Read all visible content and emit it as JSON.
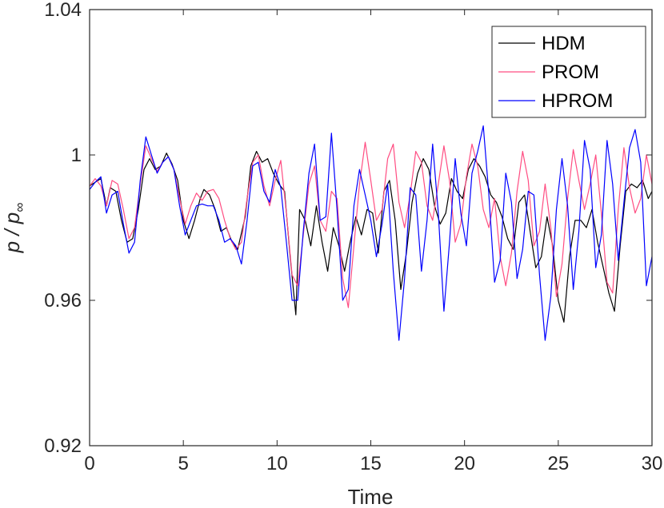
{
  "chart_data": {
    "type": "line",
    "xlabel": "Time",
    "ylabel_main": "p / p",
    "ylabel_sub": "∞",
    "xlim": [
      0,
      30
    ],
    "ylim": [
      0.92,
      1.04
    ],
    "xticks": [
      0,
      5,
      10,
      15,
      20,
      25,
      30
    ],
    "xtick_labels": [
      "0",
      "5",
      "10",
      "15",
      "20",
      "25",
      "30"
    ],
    "yticks": [
      0.92,
      0.96,
      1.0,
      1.04
    ],
    "ytick_labels": [
      "0.92",
      "0.96",
      "1",
      "1.04"
    ],
    "grid": false,
    "legend_position": "top-right",
    "series": [
      {
        "name": "HDM",
        "color": "#000000",
        "points": [
          [
            0,
            0.9915
          ],
          [
            0.3,
            0.9925
          ],
          [
            0.6,
            0.9935
          ],
          [
            0.9,
            0.986
          ],
          [
            1.1,
            0.991
          ],
          [
            1.4,
            0.99
          ],
          [
            1.7,
            0.982
          ],
          [
            2.0,
            0.976
          ],
          [
            2.3,
            0.977
          ],
          [
            2.6,
            0.985
          ],
          [
            2.9,
            0.996
          ],
          [
            3.2,
            0.999
          ],
          [
            3.5,
            0.996
          ],
          [
            3.8,
            0.997
          ],
          [
            4.1,
            1.0005
          ],
          [
            4.4,
            0.9975
          ],
          [
            4.7,
            0.993
          ],
          [
            5.0,
            0.982
          ],
          [
            5.3,
            0.977
          ],
          [
            5.6,
            0.982
          ],
          [
            5.9,
            0.988
          ],
          [
            6.1,
            0.9905
          ],
          [
            6.4,
            0.989
          ],
          [
            6.7,
            0.985
          ],
          [
            7.0,
            0.979
          ],
          [
            7.3,
            0.98
          ],
          [
            7.6,
            0.976
          ],
          [
            7.9,
            0.974
          ],
          [
            8.3,
            0.983
          ],
          [
            8.6,
            0.997
          ],
          [
            8.9,
            1.001
          ],
          [
            9.2,
            0.998
          ],
          [
            9.5,
            0.999
          ],
          [
            9.8,
            0.995
          ],
          [
            10.1,
            0.992
          ],
          [
            10.4,
            0.99
          ],
          [
            10.7,
            0.972
          ],
          [
            11.0,
            0.956
          ],
          [
            11.2,
            0.985
          ],
          [
            11.5,
            0.982
          ],
          [
            11.8,
            0.975
          ],
          [
            12.1,
            0.986
          ],
          [
            12.4,
            0.976
          ],
          [
            12.7,
            0.968
          ],
          [
            13.0,
            0.98
          ],
          [
            13.3,
            0.975
          ],
          [
            13.6,
            0.968
          ],
          [
            13.9,
            0.976
          ],
          [
            14.2,
            0.983
          ],
          [
            14.5,
            0.978
          ],
          [
            14.8,
            0.985
          ],
          [
            15.1,
            0.984
          ],
          [
            15.4,
            0.973
          ],
          [
            15.7,
            0.99
          ],
          [
            16.0,
            0.993
          ],
          [
            16.3,
            0.982
          ],
          [
            16.6,
            0.963
          ],
          [
            16.9,
            0.973
          ],
          [
            17.2,
            0.987
          ],
          [
            17.5,
            0.995
          ],
          [
            17.8,
            0.999
          ],
          [
            18.1,
            0.996
          ],
          [
            18.4,
            0.986
          ],
          [
            18.7,
            0.981
          ],
          [
            19.0,
            0.984
          ],
          [
            19.3,
            0.9935
          ],
          [
            19.6,
            0.99
          ],
          [
            19.9,
            0.988
          ],
          [
            20.2,
            0.996
          ],
          [
            20.5,
            0.999
          ],
          [
            20.8,
            0.997
          ],
          [
            21.1,
            0.994
          ],
          [
            21.4,
            0.989
          ],
          [
            21.7,
            0.987
          ],
          [
            22.0,
            0.983
          ],
          [
            22.3,
            0.977
          ],
          [
            22.6,
            0.974
          ],
          [
            22.9,
            0.987
          ],
          [
            23.2,
            0.989
          ],
          [
            23.5,
            0.979
          ],
          [
            23.8,
            0.969
          ],
          [
            24.1,
            0.972
          ],
          [
            24.4,
            0.983
          ],
          [
            24.7,
            0.975
          ],
          [
            25.0,
            0.96
          ],
          [
            25.3,
            0.954
          ],
          [
            25.6,
            0.972
          ],
          [
            25.9,
            0.982
          ],
          [
            26.2,
            0.982
          ],
          [
            26.5,
            0.98
          ],
          [
            26.8,
            0.985
          ],
          [
            27.1,
            0.976
          ],
          [
            27.4,
            0.969
          ],
          [
            27.7,
            0.962
          ],
          [
            28.0,
            0.957
          ],
          [
            28.3,
            0.975
          ],
          [
            28.6,
            0.99
          ],
          [
            28.9,
            0.992
          ],
          [
            29.2,
            0.991
          ],
          [
            29.5,
            0.993
          ],
          [
            29.8,
            0.988
          ],
          [
            30.0,
            0.99
          ]
        ]
      },
      {
        "name": "PROM",
        "color": "#ff4d82",
        "points": [
          [
            0,
            0.9915
          ],
          [
            0.3,
            0.9935
          ],
          [
            0.6,
            0.9915
          ],
          [
            0.9,
            0.986
          ],
          [
            1.2,
            0.993
          ],
          [
            1.5,
            0.992
          ],
          [
            1.8,
            0.985
          ],
          [
            2.1,
            0.977
          ],
          [
            2.4,
            0.98
          ],
          [
            2.7,
            0.992
          ],
          [
            3.0,
            1.0025
          ],
          [
            3.3,
            0.999
          ],
          [
            3.6,
            0.9955
          ],
          [
            3.9,
            0.998
          ],
          [
            4.2,
            0.9995
          ],
          [
            4.5,
            0.996
          ],
          [
            4.8,
            0.988
          ],
          [
            5.1,
            0.981
          ],
          [
            5.4,
            0.986
          ],
          [
            5.7,
            0.9895
          ],
          [
            6.0,
            0.9875
          ],
          [
            6.3,
            0.99
          ],
          [
            6.6,
            0.9905
          ],
          [
            6.9,
            0.988
          ],
          [
            7.2,
            0.982
          ],
          [
            7.5,
            0.977
          ],
          [
            7.8,
            0.974
          ],
          [
            8.1,
            0.976
          ],
          [
            8.4,
            0.988
          ],
          [
            8.7,
            0.998
          ],
          [
            9.0,
            1.0
          ],
          [
            9.3,
            0.9915
          ],
          [
            9.6,
            0.986
          ],
          [
            9.9,
            0.993
          ],
          [
            10.2,
            0.9985
          ],
          [
            10.5,
            0.984
          ],
          [
            10.8,
            0.967
          ],
          [
            11.1,
            0.964
          ],
          [
            11.4,
            0.978
          ],
          [
            11.7,
            0.992
          ],
          [
            12.0,
            0.997
          ],
          [
            12.3,
            0.982
          ],
          [
            12.6,
            0.979
          ],
          [
            12.9,
            0.99
          ],
          [
            13.2,
            0.988
          ],
          [
            13.5,
            0.966
          ],
          [
            13.8,
            0.958
          ],
          [
            14.1,
            0.975
          ],
          [
            14.4,
            0.992
          ],
          [
            14.7,
            1.0035
          ],
          [
            15.0,
            0.993
          ],
          [
            15.3,
            0.982
          ],
          [
            15.6,
            0.985
          ],
          [
            15.9,
            0.999
          ],
          [
            16.2,
            1.003
          ],
          [
            16.5,
            0.987
          ],
          [
            16.8,
            0.98
          ],
          [
            17.1,
            0.989
          ],
          [
            17.4,
            1.001
          ],
          [
            17.7,
            0.998
          ],
          [
            18.0,
            0.986
          ],
          [
            18.3,
            0.982
          ],
          [
            18.6,
            0.992
          ],
          [
            18.9,
            1.0025
          ],
          [
            19.2,
            0.993
          ],
          [
            19.5,
            0.976
          ],
          [
            19.8,
            0.981
          ],
          [
            20.1,
            0.994
          ],
          [
            20.4,
            1.003
          ],
          [
            20.7,
            0.997
          ],
          [
            21.0,
            0.985
          ],
          [
            21.3,
            0.98
          ],
          [
            21.6,
            0.988
          ],
          [
            21.9,
            0.972
          ],
          [
            22.2,
            0.964
          ],
          [
            22.5,
            0.973
          ],
          [
            22.8,
            0.99
          ],
          [
            23.1,
            1.001
          ],
          [
            23.4,
            0.993
          ],
          [
            23.7,
            0.975
          ],
          [
            24.0,
            0.979
          ],
          [
            24.3,
            0.992
          ],
          [
            24.6,
            0.98
          ],
          [
            24.9,
            0.961
          ],
          [
            25.2,
            0.97
          ],
          [
            25.5,
            0.988
          ],
          [
            25.8,
            1.0015
          ],
          [
            26.1,
            0.993
          ],
          [
            26.4,
            0.985
          ],
          [
            26.7,
            0.992
          ],
          [
            27.0,
            1.0
          ],
          [
            27.3,
            0.984
          ],
          [
            27.6,
            0.965
          ],
          [
            27.9,
            0.962
          ],
          [
            28.2,
            0.985
          ],
          [
            28.5,
            1.002
          ],
          [
            28.8,
            0.991
          ],
          [
            29.1,
            0.984
          ],
          [
            29.4,
            0.988
          ],
          [
            29.7,
            1.0
          ],
          [
            30.0,
            0.992
          ]
        ]
      },
      {
        "name": "HPROM",
        "color": "#0000ff",
        "points": [
          [
            0,
            0.9905
          ],
          [
            0.3,
            0.9925
          ],
          [
            0.6,
            0.994
          ],
          [
            0.9,
            0.984
          ],
          [
            1.2,
            0.989
          ],
          [
            1.5,
            0.99
          ],
          [
            1.8,
            0.981
          ],
          [
            2.1,
            0.973
          ],
          [
            2.4,
            0.976
          ],
          [
            2.7,
            0.993
          ],
          [
            3.0,
            1.005
          ],
          [
            3.3,
            1.0
          ],
          [
            3.6,
            0.995
          ],
          [
            3.9,
            0.998
          ],
          [
            4.2,
            0.9995
          ],
          [
            4.5,
            0.996
          ],
          [
            4.8,
            0.986
          ],
          [
            5.1,
            0.978
          ],
          [
            5.4,
            0.982
          ],
          [
            5.7,
            0.986
          ],
          [
            6.0,
            0.9865
          ],
          [
            6.3,
            0.986
          ],
          [
            6.6,
            0.986
          ],
          [
            6.9,
            0.982
          ],
          [
            7.2,
            0.976
          ],
          [
            7.5,
            0.977
          ],
          [
            7.8,
            0.975
          ],
          [
            8.1,
            0.97
          ],
          [
            8.4,
            0.982
          ],
          [
            8.7,
            0.997
          ],
          [
            9.0,
            0.998
          ],
          [
            9.3,
            0.99
          ],
          [
            9.6,
            0.987
          ],
          [
            9.9,
            0.996
          ],
          [
            10.2,
            0.991
          ],
          [
            10.5,
            0.976
          ],
          [
            10.8,
            0.96
          ],
          [
            11.1,
            0.96
          ],
          [
            11.4,
            0.979
          ],
          [
            11.7,
            0.995
          ],
          [
            12.0,
            1.003
          ],
          [
            12.3,
            0.982
          ],
          [
            12.6,
            0.983
          ],
          [
            12.9,
            1.006
          ],
          [
            13.2,
            0.985
          ],
          [
            13.5,
            0.96
          ],
          [
            13.8,
            0.963
          ],
          [
            14.1,
            0.986
          ],
          [
            14.4,
            0.996
          ],
          [
            14.7,
            0.989
          ],
          [
            15.0,
            0.982
          ],
          [
            15.3,
            0.972
          ],
          [
            15.6,
            0.981
          ],
          [
            15.9,
            0.992
          ],
          [
            16.2,
            0.968
          ],
          [
            16.5,
            0.949
          ],
          [
            16.8,
            0.966
          ],
          [
            17.1,
            0.991
          ],
          [
            17.4,
            0.989
          ],
          [
            17.7,
            0.968
          ],
          [
            18.0,
            0.982
          ],
          [
            18.3,
            1.003
          ],
          [
            18.6,
            0.984
          ],
          [
            18.9,
            0.957
          ],
          [
            19.2,
            0.976
          ],
          [
            19.5,
            0.999
          ],
          [
            19.8,
            0.984
          ],
          [
            20.1,
            0.975
          ],
          [
            20.4,
            0.995
          ],
          [
            20.7,
            1.001
          ],
          [
            21.0,
            1.008
          ],
          [
            21.3,
            0.989
          ],
          [
            21.6,
            0.965
          ],
          [
            21.9,
            0.971
          ],
          [
            22.2,
            0.995
          ],
          [
            22.5,
            0.987
          ],
          [
            22.8,
            0.966
          ],
          [
            23.1,
            0.974
          ],
          [
            23.4,
            0.99
          ],
          [
            23.7,
            0.989
          ],
          [
            24.0,
            0.967
          ],
          [
            24.3,
            0.949
          ],
          [
            24.6,
            0.961
          ],
          [
            24.9,
            0.985
          ],
          [
            25.2,
            0.999
          ],
          [
            25.5,
            0.986
          ],
          [
            25.8,
            0.963
          ],
          [
            26.1,
            0.979
          ],
          [
            26.4,
            1.004
          ],
          [
            26.7,
            0.996
          ],
          [
            27.0,
            0.969
          ],
          [
            27.3,
            0.978
          ],
          [
            27.6,
            1.004
          ],
          [
            27.9,
            0.992
          ],
          [
            28.2,
            0.971
          ],
          [
            28.5,
            0.987
          ],
          [
            28.8,
            1.002
          ],
          [
            29.1,
            1.007
          ],
          [
            29.4,
            0.998
          ],
          [
            29.7,
            0.964
          ],
          [
            30.0,
            0.972
          ]
        ]
      }
    ]
  }
}
